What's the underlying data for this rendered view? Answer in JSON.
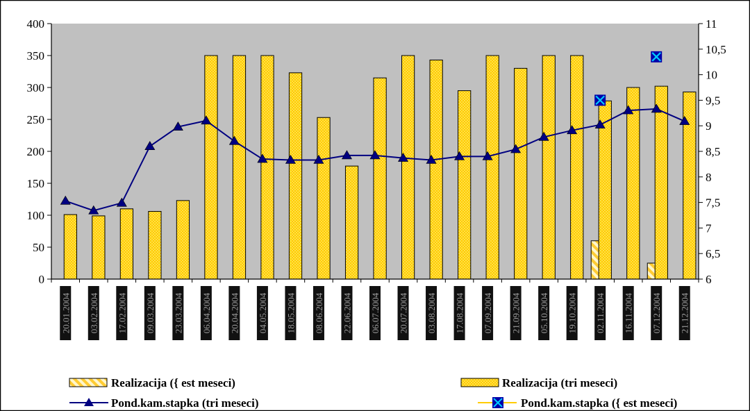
{
  "chart_data": {
    "type": "bar",
    "categories": [
      "20.01.2004",
      "03.02.2004",
      "17.02.2004",
      "09.03.2004",
      "23.03.2004",
      "06.04.2004",
      "20.04.2004",
      "04.05.2004",
      "18.05.2004",
      "08.06.2004",
      "22.06.2004",
      "06.07.2004",
      "20.07.2004",
      "03.08.2004",
      "17.08.2004",
      "07.09.2004",
      "21.09.2004",
      "05.10.2004",
      "19.10.2004",
      "02.11.2004",
      "16.11.2004",
      "07.12.2004",
      "21.12.2004"
    ],
    "y_left": {
      "ylim": [
        0,
        400
      ],
      "ticks": [
        "0",
        "50",
        "100",
        "150",
        "200",
        "250",
        "300",
        "350",
        "400"
      ],
      "tick_values": [
        0,
        50,
        100,
        150,
        200,
        250,
        300,
        350,
        400
      ]
    },
    "y_right": {
      "ylim": [
        6,
        11
      ],
      "ticks": [
        "6",
        "6,5",
        "7",
        "7,5",
        "8",
        "8,5",
        "9",
        "9,5",
        "10",
        "10,5",
        "11"
      ],
      "tick_values": [
        6,
        6.5,
        7,
        7.5,
        8,
        8.5,
        9,
        9.5,
        10,
        10.5,
        11
      ]
    },
    "series": [
      {
        "name": "Realizacija ({ est meseci)",
        "type": "bar",
        "axis": "left",
        "color": "#ffd966",
        "values": [
          null,
          null,
          null,
          null,
          null,
          null,
          null,
          null,
          null,
          null,
          null,
          null,
          null,
          null,
          null,
          null,
          null,
          null,
          null,
          60,
          null,
          25,
          null
        ]
      },
      {
        "name": "Realizacija (tri meseci)",
        "type": "bar",
        "axis": "left",
        "color": "#ffcc00",
        "values": [
          101,
          99,
          110,
          106,
          123,
          350,
          350,
          350,
          323,
          253,
          177,
          315,
          350,
          343,
          295,
          350,
          330,
          350,
          350,
          279,
          300,
          302,
          293
        ]
      },
      {
        "name": "Pond.kam.stapka (tri meseci)",
        "type": "line",
        "axis": "right",
        "color": "#000080",
        "values": [
          7.53,
          7.34,
          7.49,
          8.6,
          8.98,
          9.1,
          8.7,
          8.35,
          8.33,
          8.33,
          8.42,
          8.42,
          8.37,
          8.33,
          8.4,
          8.4,
          8.54,
          8.78,
          8.91,
          9.02,
          9.3,
          9.33,
          9.09
        ]
      },
      {
        "name": "Pond.kam.stapka ({ est meseci)",
        "type": "scatter",
        "axis": "right",
        "color": "#00ccff",
        "values": [
          null,
          null,
          null,
          null,
          null,
          null,
          null,
          null,
          null,
          null,
          null,
          null,
          null,
          null,
          null,
          null,
          null,
          null,
          null,
          9.5,
          null,
          10.35,
          null
        ]
      }
    ],
    "legend_position": "bottom",
    "grid": false,
    "plot_background": "#c0c0c0"
  }
}
